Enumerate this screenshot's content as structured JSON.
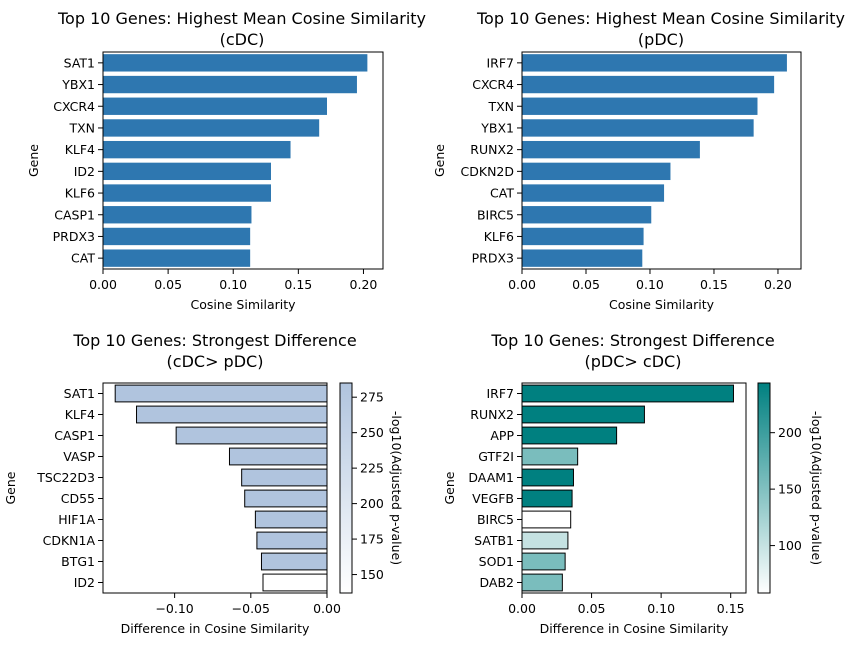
{
  "chart_data": [
    {
      "type": "bar",
      "orientation": "horizontal",
      "title": "Top 10 Genes: Highest Mean Cosine Similarity\n(cDC)",
      "xlabel": "Cosine Similarity",
      "ylabel": "Gene",
      "xlim": [
        0,
        0.215
      ],
      "xticks": [
        0.0,
        0.05,
        0.1,
        0.15,
        0.2
      ],
      "xtick_labels": [
        "0.00",
        "0.05",
        "0.10",
        "0.15",
        "0.20"
      ],
      "categories": [
        "SAT1",
        "YBX1",
        "CXCR4",
        "TXN",
        "KLF4",
        "ID2",
        "KLF6",
        "CASP1",
        "PRDX3",
        "CAT"
      ],
      "values": [
        0.203,
        0.195,
        0.172,
        0.166,
        0.144,
        0.129,
        0.129,
        0.114,
        0.113,
        0.113
      ],
      "bar_color": "#2e77b0"
    },
    {
      "type": "bar",
      "orientation": "horizontal",
      "title": "Top 10 Genes: Highest Mean Cosine Similarity\n(pDC)",
      "xlabel": "Cosine Similarity",
      "ylabel": "Gene",
      "xlim": [
        0,
        0.218
      ],
      "xticks": [
        0.0,
        0.05,
        0.1,
        0.15,
        0.2
      ],
      "xtick_labels": [
        "0.00",
        "0.05",
        "0.10",
        "0.15",
        "0.20"
      ],
      "categories": [
        "IRF7",
        "CXCR4",
        "TXN",
        "YBX1",
        "RUNX2",
        "CDKN2D",
        "CAT",
        "BIRC5",
        "KLF6",
        "PRDX3"
      ],
      "values": [
        0.207,
        0.197,
        0.184,
        0.181,
        0.139,
        0.116,
        0.111,
        0.101,
        0.095,
        0.094
      ],
      "bar_color": "#2e77b0"
    },
    {
      "type": "bar",
      "orientation": "horizontal",
      "title": "Top 10 Genes: Strongest Difference\n(cDC> pDC)",
      "xlabel": "Difference in Cosine Similarity",
      "ylabel": "Gene",
      "xlim": [
        -0.147,
        0.0
      ],
      "xticks": [
        -0.1,
        -0.05,
        0.0
      ],
      "xtick_labels": [
        "−0.10",
        "−0.05",
        "0.00"
      ],
      "categories": [
        "SAT1",
        "KLF4",
        "CASP1",
        "VASP",
        "TSC22D3",
        "CD55",
        "HIF1A",
        "CDKN1A",
        "BTG1",
        "ID2"
      ],
      "values": [
        -0.139,
        -0.125,
        -0.099,
        -0.064,
        -0.056,
        -0.054,
        -0.047,
        -0.046,
        -0.043,
        -0.042
      ],
      "colorbar": {
        "label": "-log10(Adjusted p-value)",
        "vmin": 137,
        "vmax": 285,
        "ticks": [
          150,
          175,
          200,
          225,
          250,
          275
        ],
        "cmap": [
          "#ffffff",
          "#b0c4de"
        ],
        "bar_values": [
          285,
          285,
          285,
          285,
          285,
          285,
          285,
          285,
          285,
          137
        ]
      }
    },
    {
      "type": "bar",
      "orientation": "horizontal",
      "title": "Top 10 Genes: Strongest Difference\n(pDC> cDC)",
      "xlabel": "Difference in Cosine Similarity",
      "ylabel": "Gene",
      "xlim": [
        0,
        0.161
      ],
      "xticks": [
        0.0,
        0.05,
        0.1,
        0.15
      ],
      "xtick_labels": [
        "0.00",
        "0.05",
        "0.10",
        "0.15"
      ],
      "categories": [
        "IRF7",
        "RUNX2",
        "APP",
        "GTF2I",
        "DAAM1",
        "VEGFB",
        "BIRC5",
        "SATB1",
        "SOD1",
        "DAB2"
      ],
      "values": [
        0.152,
        0.088,
        0.068,
        0.04,
        0.037,
        0.036,
        0.035,
        0.033,
        0.031,
        0.029
      ],
      "colorbar": {
        "label": "-log10(Adjusted p-value)",
        "vmin": 58,
        "vmax": 244,
        "ticks": [
          100,
          150,
          200
        ],
        "cmap": [
          "#ffffff",
          "#008080"
        ],
        "bar_values": [
          244,
          244,
          244,
          155,
          244,
          244,
          58,
          100,
          155,
          155
        ]
      }
    }
  ]
}
